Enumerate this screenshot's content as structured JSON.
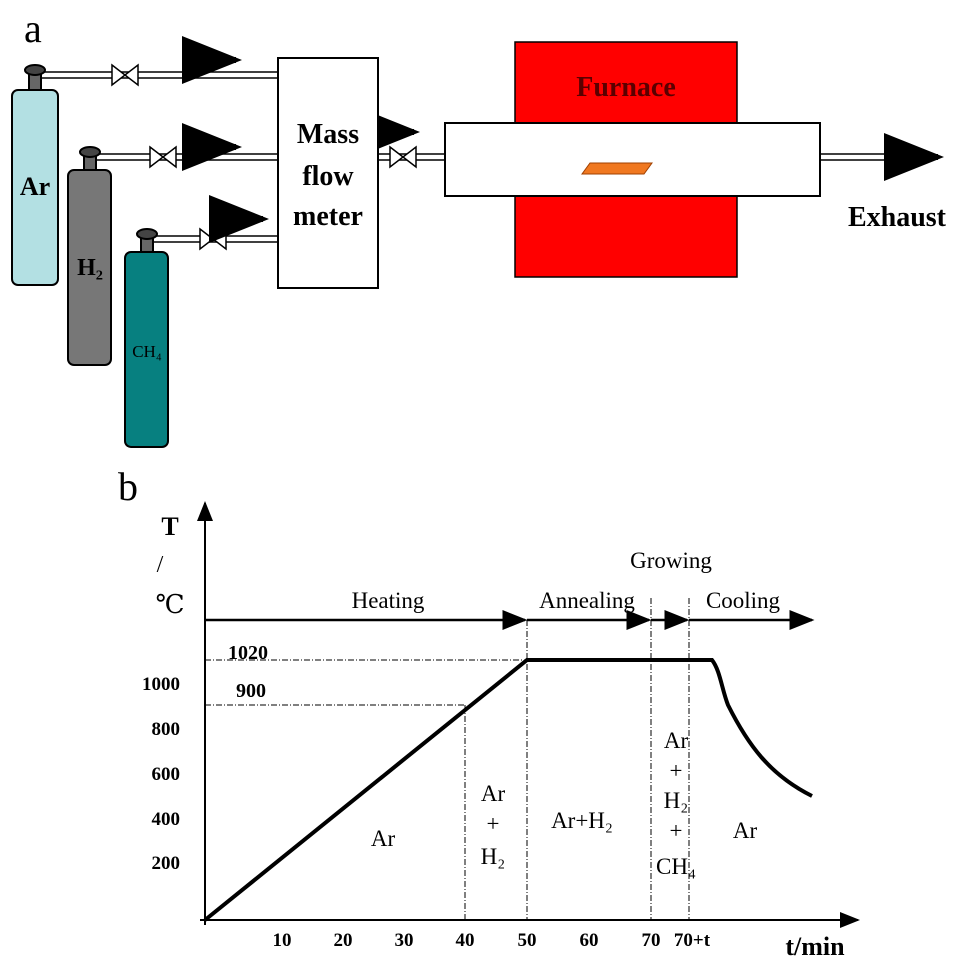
{
  "panel_a": {
    "label": "a",
    "cylinders": [
      "Ar",
      "H₂",
      "CH₄"
    ],
    "mass_flow_meter": [
      "Mass",
      "flow",
      "meter"
    ],
    "furnace": "Furnace",
    "exhaust": "Exhaust"
  },
  "panel_b": {
    "label": "b",
    "y_axis": [
      "T",
      "/",
      "℃"
    ],
    "x_axis_label": "t/min",
    "yticks": [
      "200",
      "400",
      "600",
      "800",
      "1000"
    ],
    "xticks": [
      "10",
      "20",
      "30",
      "40",
      "50",
      "60",
      "70",
      "70+t"
    ],
    "levels": [
      "1020",
      "900"
    ],
    "stages": [
      "Heating",
      "Annealing",
      "Growing",
      "Cooling"
    ],
    "gases": {
      "heating": "Ar",
      "ramp_end": [
        "Ar",
        "+",
        "H₂"
      ],
      "annealing": "Ar+H₂",
      "growing": [
        "Ar",
        "+",
        "H₂",
        "+",
        "CH₄"
      ],
      "cooling": "Ar"
    }
  }
}
